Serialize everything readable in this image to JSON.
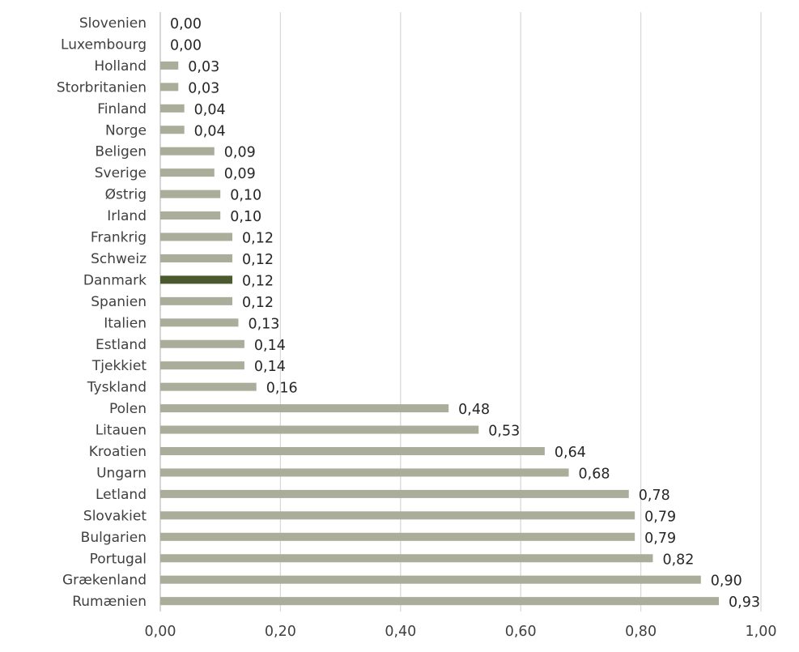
{
  "chart_data": {
    "type": "bar",
    "orientation": "horizontal",
    "title": "",
    "xlabel": "",
    "ylabel": "",
    "xlim": [
      0,
      1.0
    ],
    "x_ticks": [
      "0,00",
      "0,20",
      "0,40",
      "0,60",
      "0,80",
      "1,00"
    ],
    "x_tick_values": [
      0,
      0.2,
      0.4,
      0.6,
      0.8,
      1.0
    ],
    "grid": true,
    "legend": "none",
    "categories": [
      "Slovenien",
      "Luxembourg",
      "Holland",
      "Storbritanien",
      "Finland",
      "Norge",
      "Beligen",
      "Sverige",
      "Østrig",
      "Irland",
      "Frankrig",
      "Schweiz",
      "Danmark",
      "Spanien",
      "Italien",
      "Estland",
      "Tjekkiet",
      "Tyskland",
      "Polen",
      "Litauen",
      "Kroatien",
      "Ungarn",
      "Letland",
      "Slovakiet",
      "Bulgarien",
      "Portugal",
      "Grækenland",
      "Rumænien"
    ],
    "values": [
      0.0,
      0.0,
      0.03,
      0.03,
      0.04,
      0.04,
      0.09,
      0.09,
      0.1,
      0.1,
      0.12,
      0.12,
      0.12,
      0.12,
      0.13,
      0.14,
      0.14,
      0.16,
      0.48,
      0.53,
      0.64,
      0.68,
      0.78,
      0.79,
      0.79,
      0.82,
      0.9,
      0.93
    ],
    "value_labels": [
      "0,00",
      "0,00",
      "0,03",
      "0,03",
      "0,04",
      "0,04",
      "0,09",
      "0,09",
      "0,10",
      "0,10",
      "0,12",
      "0,12",
      "0,12",
      "0,12",
      "0,13",
      "0,14",
      "0,14",
      "0,16",
      "0,48",
      "0,53",
      "0,64",
      "0,68",
      "0,78",
      "0,79",
      "0,79",
      "0,82",
      "0,90",
      "0,93"
    ],
    "bar_color": "#a9ad9a",
    "highlight_category": "Danmark",
    "highlight_color": "#4a5a2e"
  }
}
